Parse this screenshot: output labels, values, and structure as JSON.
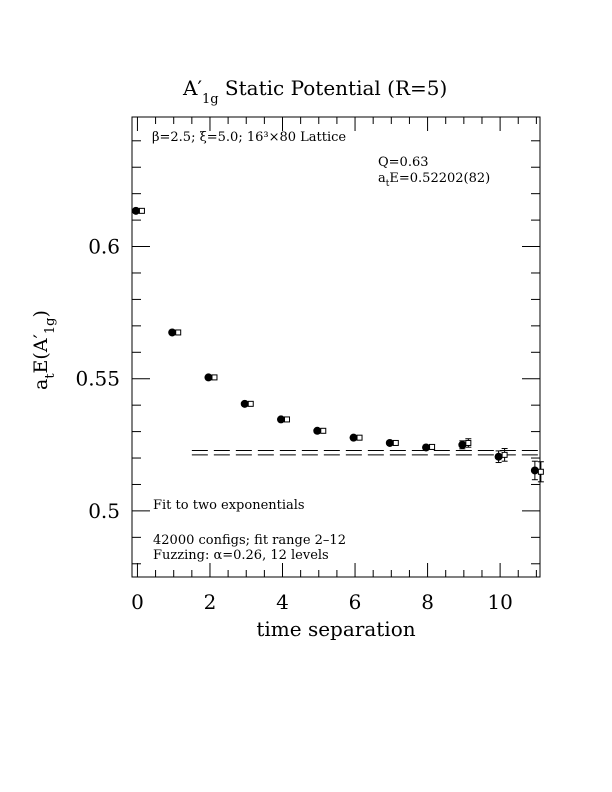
{
  "chart_data": {
    "type": "scatter",
    "title": "A′",
    "title_sub": "1g",
    "title_rest": " Static Potential (R=5)",
    "xlabel": "time separation",
    "ylabel_main": "a",
    "ylabel_t": "t",
    "ylabel_e": "E(A′",
    "ylabel_sub": "1g",
    "ylabel_close": ")",
    "xlim": [
      -0.15,
      11.1
    ],
    "ylim": [
      0.475,
      0.649
    ],
    "x_ticks": [
      "0",
      "2",
      "4",
      "6",
      "8",
      "10"
    ],
    "x_tick_values": [
      0,
      2,
      4,
      6,
      8,
      10
    ],
    "y_ticks": [
      "0.5",
      "0.55",
      "0.6"
    ],
    "y_tick_values": [
      0.5,
      0.55,
      0.6
    ],
    "annotations": {
      "lattice": "β=2.5; ξ=5.0; 16³×80 Lattice",
      "q_value": "Q=0.63",
      "energy_prefix": "a",
      "energy_sub": "t",
      "energy_value": "E=0.52202(82)",
      "fit_label": "Fit to two exponentials",
      "configs": "42000 configs; fit range 2–12",
      "fuzzing": "Fuzzing: α=0.26, 12 levels"
    },
    "series": [
      {
        "marker": "filled-circle",
        "x": [
          0,
          1,
          2,
          3,
          4,
          5,
          6,
          7,
          8,
          9,
          10,
          11
        ],
        "y": [
          0.6135,
          0.5675,
          0.5505,
          0.5405,
          0.5346,
          0.5303,
          0.5277,
          0.5257,
          0.524,
          0.525,
          0.5205,
          0.5153
        ],
        "err": [
          0.0003,
          0.0003,
          0.0003,
          0.0004,
          0.0004,
          0.0005,
          0.0006,
          0.0007,
          0.0009,
          0.0015,
          0.0022,
          0.0035
        ]
      },
      {
        "marker": "open-square",
        "x": [
          0,
          1,
          2,
          3,
          4,
          5,
          6,
          7,
          8,
          9,
          10,
          11
        ],
        "y": [
          0.6135,
          0.5675,
          0.5505,
          0.5405,
          0.5346,
          0.5303,
          0.5277,
          0.5257,
          0.5242,
          0.5257,
          0.5212,
          0.5148
        ],
        "err": [
          0.0003,
          0.0003,
          0.0003,
          0.0004,
          0.0004,
          0.0005,
          0.0006,
          0.0007,
          0.0009,
          0.0016,
          0.0024,
          0.0038
        ]
      }
    ],
    "fit_band": {
      "value": 0.52202,
      "error": 0.00082,
      "x_start": 1.5,
      "x_end": 11.1
    }
  }
}
